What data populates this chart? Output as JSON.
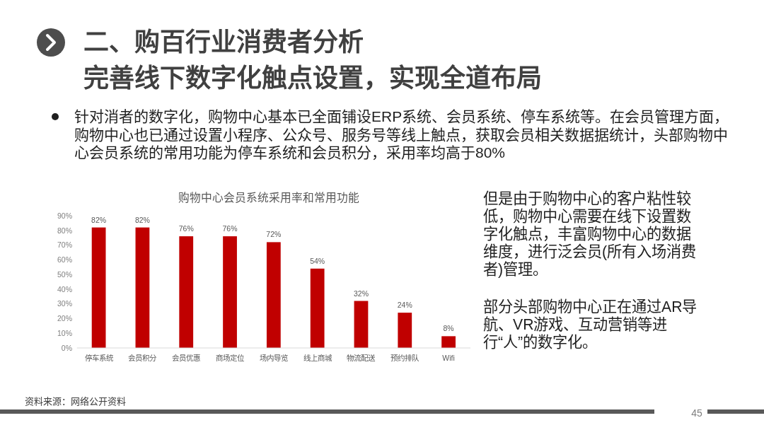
{
  "chart_data": {
    "type": "bar",
    "title": "购物中心会员系统采用率和常用功能",
    "categories": [
      "停车系统",
      "会员积分",
      "会员优惠",
      "商场定位",
      "场内导览",
      "线上商城",
      "物流配送",
      "预约排队",
      "Wifi"
    ],
    "values": [
      82,
      82,
      76,
      76,
      72,
      54,
      32,
      24,
      8
    ],
    "color": "#c00000",
    "value_labels": [
      "82%",
      "82%",
      "76%",
      "76%",
      "72%",
      "54%",
      "32%",
      "24%",
      "8%"
    ],
    "ylim": [
      0,
      90
    ],
    "yticks": [
      {
        "value": 0,
        "label": "0%"
      },
      {
        "value": 10,
        "label": "10%"
      },
      {
        "value": 20,
        "label": "20%"
      },
      {
        "value": 30,
        "label": "30%"
      },
      {
        "value": 40,
        "label": "40%"
      },
      {
        "value": 50,
        "label": "50%"
      },
      {
        "value": 60,
        "label": "60%"
      },
      {
        "value": 70,
        "label": "70%"
      },
      {
        "value": 80,
        "label": "80%"
      },
      {
        "value": 90,
        "label": "90%"
      }
    ],
    "annotations": [
      "二、购百行业消费者分析",
      "完善线下数字化触点设置，实现全道布局",
      "针对消者的数字化，购物中心基本已全面铺设ERP系统、会员系统、停车系统等。在会员管理方面，购物中心也已通过设置小程序、公众号、服务号等线上触点，获取会员相关数据据统计，头部购物中心会员系统的常用功能为停车系统和会员积分，采用率均高于80%",
      "但是由于购物中心的客户粘性较低，购物中心需要在线下设置数字化触点，丰富购物中心的数据维度，进行泛会员(所有入场消费者)管理。",
      "部分头部购物中心正在通过AR导航、VR游戏、互动营销等进行“人”的数字化。",
      "资料来源：网络公开资料",
      "45"
    ]
  }
}
